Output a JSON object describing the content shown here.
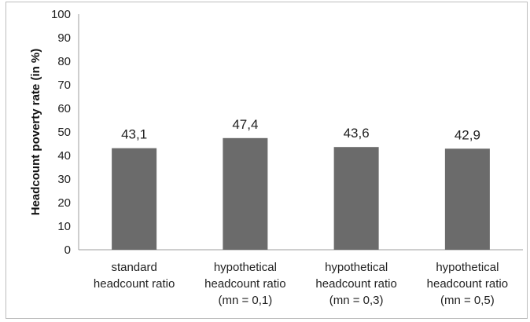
{
  "chart_data": {
    "type": "bar",
    "title": "",
    "xlabel": "",
    "ylabel": "Headcount poverty rate (in %)",
    "ylim": [
      0,
      100
    ],
    "yticks": [
      0,
      10,
      20,
      30,
      40,
      50,
      60,
      70,
      80,
      90,
      100
    ],
    "grid": false,
    "categories": [
      [
        "standard",
        "headcount ratio"
      ],
      [
        "hypothetical",
        "headcount ratio",
        "(mn = 0,1)"
      ],
      [
        "hypothetical",
        "headcount ratio",
        "(mn = 0,3)"
      ],
      [
        "hypothetical",
        "headcount ratio",
        "(mn = 0,5)"
      ]
    ],
    "values": [
      43.1,
      47.4,
      43.6,
      42.9
    ],
    "value_labels": [
      "43,1",
      "47,4",
      "43,6",
      "42,9"
    ],
    "bar_color": "#6b6b6b"
  }
}
